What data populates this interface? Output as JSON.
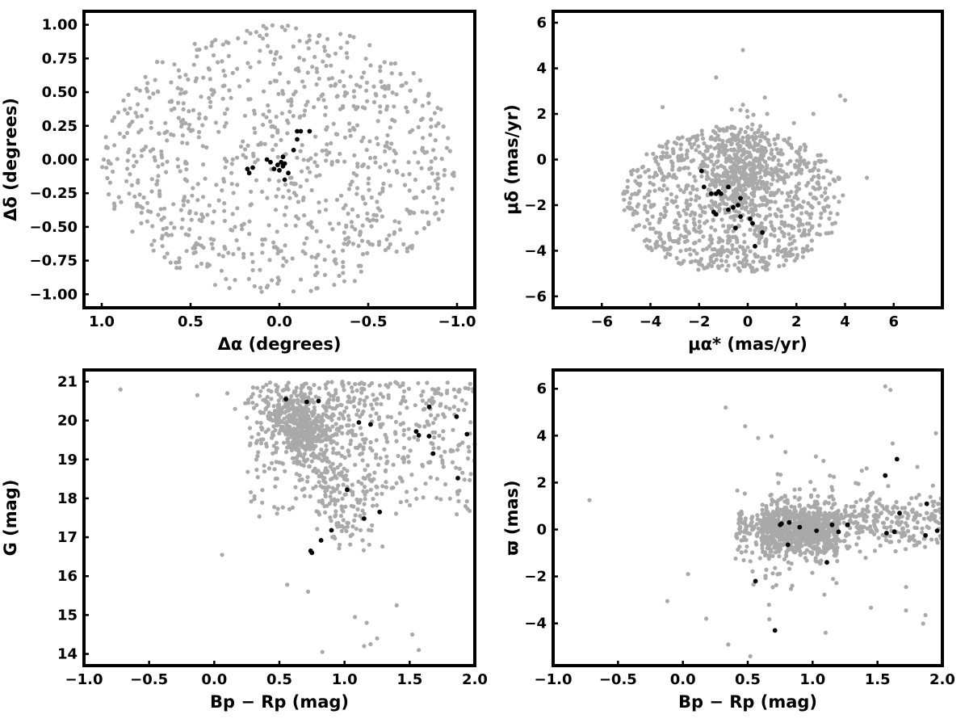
{
  "colors": {
    "background_stars": "#a9a9a9",
    "members": "#000000",
    "frame": "#000000"
  },
  "chart_data": [
    {
      "type": "scatter",
      "xlabel": "Δα (degrees)",
      "ylabel": "Δδ (degrees)",
      "xlim": [
        1.1,
        -1.1
      ],
      "ylim": [
        -1.1,
        1.1
      ],
      "x_inverted": true,
      "xticks": [
        1.0,
        0.5,
        0.0,
        -0.5,
        -1.0
      ],
      "xtick_labels": [
        "1.0",
        "0.5",
        "0.0",
        "−0.5",
        "−1.0"
      ],
      "yticks": [
        -1.0,
        -0.75,
        -0.5,
        -0.25,
        0.0,
        0.25,
        0.5,
        0.75,
        1.0
      ],
      "ytick_labels": [
        "−1.00",
        "−0.75",
        "−0.50",
        "−0.25",
        "0.00",
        "0.25",
        "0.50",
        "0.75",
        "1.00"
      ],
      "grid": false,
      "series": [
        {
          "style": "field",
          "generator": {
            "kind": "disk",
            "cx": 0.0,
            "cy": 0.0,
            "r": 1.0,
            "n": 900,
            "seed": 11
          },
          "points": []
        },
        {
          "style": "members",
          "points": [
            [
              0.18,
              -0.07
            ],
            [
              0.15,
              -0.06
            ],
            [
              0.17,
              -0.1
            ],
            [
              0.07,
              0.0
            ],
            [
              0.05,
              -0.02
            ],
            [
              0.03,
              -0.07
            ],
            [
              0.0,
              -0.08
            ],
            [
              -0.02,
              -0.05
            ],
            [
              -0.01,
              -0.02
            ],
            [
              -0.03,
              -0.03
            ],
            [
              -0.05,
              -0.1
            ],
            [
              -0.03,
              -0.15
            ],
            [
              -0.02,
              0.02
            ],
            [
              -0.08,
              0.07
            ],
            [
              -0.1,
              0.15
            ],
            [
              -0.1,
              0.21
            ],
            [
              -0.12,
              0.21
            ],
            [
              -0.17,
              0.21
            ],
            [
              0.01,
              -0.04
            ]
          ]
        }
      ]
    },
    {
      "type": "scatter",
      "xlabel": "μα* (mas/yr)",
      "ylabel": "μδ (mas/yr)",
      "xlim": [
        -8.0,
        8.0
      ],
      "ylim": [
        -6.5,
        6.5
      ],
      "xticks": [
        -6,
        -4,
        -2,
        0,
        2,
        4,
        6
      ],
      "xtick_labels": [
        "−6",
        "−4",
        "−2",
        "0",
        "2",
        "4",
        "6"
      ],
      "yticks": [
        -6,
        -4,
        -2,
        0,
        2,
        4,
        6
      ],
      "ytick_labels": [
        "−6",
        "−4",
        "−2",
        "0",
        "2",
        "4",
        "6"
      ],
      "grid": false,
      "series": [
        {
          "style": "field",
          "generator": {
            "kind": "ellipse",
            "cx": -0.6,
            "cy": -1.8,
            "rx": 4.6,
            "ry": 3.2,
            "n": 1300,
            "seed": 23
          },
          "points": [
            [
              -0.2,
              4.8
            ],
            [
              3.8,
              2.8
            ],
            [
              4.0,
              2.6
            ],
            [
              -1.3,
              3.6
            ],
            [
              -0.2,
              2.4
            ],
            [
              0.8,
              2.0
            ],
            [
              -3.5,
              2.3
            ],
            [
              4.9,
              -0.8
            ],
            [
              2.7,
              2.0
            ],
            [
              1.9,
              1.6
            ]
          ]
        },
        {
          "style": "members",
          "points": [
            [
              -1.9,
              -0.5
            ],
            [
              -1.8,
              -1.2
            ],
            [
              -1.5,
              -1.5
            ],
            [
              -1.3,
              -1.5
            ],
            [
              -1.2,
              -1.4
            ],
            [
              -1.3,
              -2.4
            ],
            [
              -1.1,
              -1.5
            ],
            [
              -0.8,
              -1.2
            ],
            [
              -0.8,
              -2.2
            ],
            [
              -0.6,
              -2.1
            ],
            [
              -0.4,
              -2.0
            ],
            [
              -0.3,
              -1.7
            ],
            [
              -0.5,
              -3.0
            ],
            [
              -0.3,
              -2.5
            ],
            [
              0.1,
              -2.6
            ],
            [
              0.2,
              -2.8
            ],
            [
              0.6,
              -3.2
            ],
            [
              0.3,
              -3.8
            ],
            [
              -1.4,
              -2.3
            ]
          ]
        }
      ]
    },
    {
      "type": "scatter",
      "xlabel": "Bp − Rp (mag)",
      "ylabel": "G (mag)",
      "xlim": [
        -1.0,
        2.0
      ],
      "ylim": [
        13.7,
        21.3
      ],
      "xticks": [
        -1.0,
        -0.5,
        0.0,
        0.5,
        1.0,
        1.5,
        2.0
      ],
      "xtick_labels": [
        "−1.0",
        "−0.5",
        "0.0",
        "0.5",
        "1.0",
        "1.5",
        "2.0"
      ],
      "yticks": [
        14,
        15,
        16,
        17,
        18,
        19,
        20,
        21
      ],
      "ytick_labels": [
        "14",
        "15",
        "16",
        "17",
        "18",
        "19",
        "20",
        "21"
      ],
      "grid": false,
      "series": [
        {
          "style": "field",
          "generator": {
            "kind": "cmd",
            "n": 1100,
            "seed": 37
          },
          "points": [
            [
              -0.72,
              20.8
            ],
            [
              -0.13,
              20.65
            ],
            [
              0.06,
              16.55
            ],
            [
              0.83,
              14.05
            ],
            [
              1.15,
              14.2
            ],
            [
              1.2,
              14.25
            ],
            [
              1.4,
              15.25
            ],
            [
              1.52,
              14.5
            ],
            [
              1.57,
              14.1
            ],
            [
              1.08,
              14.95
            ],
            [
              1.17,
              14.8
            ],
            [
              1.25,
              14.4
            ],
            [
              0.56,
              15.78
            ],
            [
              0.72,
              15.6
            ],
            [
              0.1,
              20.7
            ],
            [
              0.16,
              20.3
            ]
          ]
        },
        {
          "style": "members",
          "points": [
            [
              0.55,
              20.55
            ],
            [
              0.71,
              20.48
            ],
            [
              0.8,
              20.5
            ],
            [
              1.11,
              19.95
            ],
            [
              1.2,
              19.9
            ],
            [
              1.55,
              19.72
            ],
            [
              1.57,
              19.62
            ],
            [
              1.65,
              20.35
            ],
            [
              1.65,
              19.6
            ],
            [
              1.68,
              19.15
            ],
            [
              1.86,
              20.1
            ],
            [
              1.94,
              19.65
            ],
            [
              1.87,
              18.52
            ],
            [
              1.02,
              18.22
            ],
            [
              1.15,
              17.48
            ],
            [
              1.27,
              17.65
            ],
            [
              0.9,
              17.18
            ],
            [
              0.82,
              16.92
            ],
            [
              0.75,
              16.6
            ],
            [
              0.74,
              16.65
            ]
          ]
        }
      ]
    },
    {
      "type": "scatter",
      "xlabel": "Bp − Rp (mag)",
      "ylabel": "ϖ (mas)",
      "xlim": [
        -1.0,
        2.0
      ],
      "ylim": [
        -5.8,
        6.8
      ],
      "xticks": [
        -1.0,
        -0.5,
        0.0,
        0.5,
        1.0,
        1.5,
        2.0
      ],
      "xtick_labels": [
        "−1.0",
        "−0.5",
        "0.0",
        "0.5",
        "1.0",
        "1.5",
        "2.0"
      ],
      "yticks": [
        -4,
        -2,
        0,
        2,
        4,
        6
      ],
      "ytick_labels": [
        "−4",
        "−2",
        "0",
        "2",
        "4",
        "6"
      ],
      "grid": false,
      "series": [
        {
          "style": "field",
          "generator": {
            "kind": "parallax",
            "n": 1200,
            "seed": 53
          },
          "points": [
            [
              -0.72,
              1.25
            ],
            [
              -0.12,
              -3.05
            ],
            [
              0.04,
              -1.9
            ],
            [
              0.18,
              -3.8
            ],
            [
              0.33,
              5.2
            ],
            [
              0.35,
              -4.9
            ],
            [
              0.48,
              4.4
            ],
            [
              0.52,
              -5.4
            ],
            [
              1.56,
              6.1
            ],
            [
              1.6,
              5.95
            ],
            [
              1.95,
              4.1
            ],
            [
              1.87,
              -3.65
            ],
            [
              1.1,
              -4.4
            ],
            [
              0.58,
              3.9
            ],
            [
              1.72,
              -3.45
            ]
          ]
        },
        {
          "style": "members",
          "points": [
            [
              0.56,
              -2.2
            ],
            [
              0.71,
              -4.3
            ],
            [
              0.75,
              0.2
            ],
            [
              0.76,
              0.25
            ],
            [
              0.81,
              -0.65
            ],
            [
              0.82,
              0.3
            ],
            [
              0.9,
              0.1
            ],
            [
              1.03,
              -0.05
            ],
            [
              1.11,
              -1.4
            ],
            [
              1.15,
              0.2
            ],
            [
              1.2,
              -0.1
            ],
            [
              1.27,
              0.2
            ],
            [
              1.56,
              2.3
            ],
            [
              1.65,
              3.0
            ],
            [
              1.67,
              0.7
            ],
            [
              1.57,
              -0.15
            ],
            [
              1.63,
              -0.1
            ],
            [
              1.87,
              -0.25
            ],
            [
              1.88,
              1.1
            ],
            [
              1.96,
              -0.05
            ]
          ]
        }
      ]
    }
  ]
}
